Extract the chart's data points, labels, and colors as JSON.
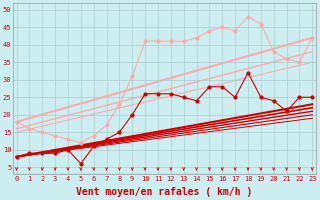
{
  "background_color": "#cceef0",
  "grid_color": "#aacccc",
  "xlabel": "Vent moyen/en rafales ( km/h )",
  "xlabel_color": "#cc0000",
  "xlabel_fontsize": 7,
  "tick_color": "#cc0000",
  "yticks": [
    5,
    10,
    15,
    20,
    25,
    30,
    35,
    40,
    45,
    50
  ],
  "xticks": [
    0,
    1,
    2,
    3,
    4,
    5,
    6,
    7,
    8,
    9,
    10,
    11,
    12,
    13,
    14,
    15,
    16,
    17,
    18,
    19,
    20,
    21,
    22,
    23
  ],
  "xlim": [
    -0.3,
    23.3
  ],
  "ylim": [
    3,
    52
  ],
  "series_dark": {
    "x": [
      0,
      1,
      2,
      3,
      4,
      5,
      6,
      7,
      8,
      9,
      10,
      11,
      12,
      13,
      14,
      15,
      16,
      17,
      18,
      19,
      20,
      21,
      22,
      23
    ],
    "y": [
      8,
      9,
      9,
      9,
      10,
      6,
      11,
      13,
      15,
      20,
      26,
      26,
      26,
      25,
      24,
      28,
      28,
      25,
      32,
      25,
      24,
      21,
      25,
      25
    ],
    "color": "#cc0000",
    "linewidth": 0.8,
    "markersize": 2.0
  },
  "series_light": {
    "x": [
      0,
      1,
      2,
      3,
      4,
      5,
      6,
      7,
      8,
      9,
      10,
      11,
      12,
      13,
      14,
      15,
      16,
      17,
      18,
      19,
      20,
      21,
      22,
      23
    ],
    "y": [
      18,
      16,
      15,
      14,
      13,
      12,
      14,
      17,
      23,
      31,
      41,
      41,
      41,
      41,
      42,
      44,
      45,
      44,
      48,
      46,
      38,
      36,
      35,
      42
    ],
    "color": "#ffaaaa",
    "linewidth": 0.8,
    "markersize": 2.0
  },
  "trend_lines_dark": [
    {
      "x0": 0,
      "y0": 8,
      "x1": 23,
      "y1": 23,
      "lw": 1.5
    },
    {
      "x0": 0,
      "y0": 8,
      "x1": 23,
      "y1": 22,
      "lw": 1.2
    },
    {
      "x0": 0,
      "y0": 8,
      "x1": 23,
      "y1": 21,
      "lw": 1.0
    },
    {
      "x0": 0,
      "y0": 8,
      "x1": 23,
      "y1": 20,
      "lw": 0.8
    },
    {
      "x0": 0,
      "y0": 8,
      "x1": 23,
      "y1": 19,
      "lw": 0.7
    }
  ],
  "trend_lines_light": [
    {
      "x0": 0,
      "y0": 18,
      "x1": 23,
      "y1": 42,
      "lw": 1.5
    },
    {
      "x0": 0,
      "y0": 16,
      "x1": 23,
      "y1": 38,
      "lw": 1.0
    },
    {
      "x0": 0,
      "y0": 15,
      "x1": 23,
      "y1": 35,
      "lw": 0.8
    }
  ],
  "dark_color": "#cc0000",
  "light_color": "#ffaaaa",
  "arrow_color": "#cc0000"
}
